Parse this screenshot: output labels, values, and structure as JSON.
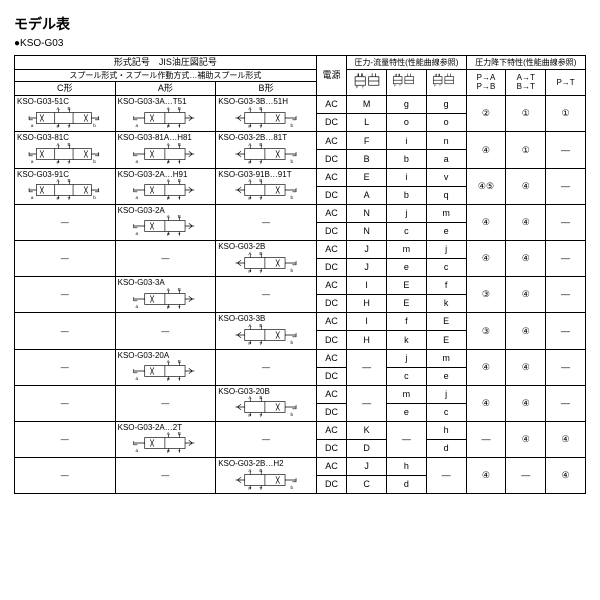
{
  "title": "モデル表",
  "subtitle": "●KSO-G03",
  "headers": {
    "model_sym": "形式記号　JIS油圧図記号",
    "spool_line": "スプール形式・スプール作動方式…補助スプール形式",
    "c_type": "C形",
    "a_type": "A形",
    "b_type": "B形",
    "power": "電源",
    "flow_title": "圧力-流量特性(性能曲線参照)",
    "pd_title": "圧力降下特性(性能曲線参照)",
    "flow_sub": [
      "A|B / P|T",
      "A|B / P|T",
      "A|B / P|T"
    ],
    "pd_pa": "P→A\nP→B",
    "pd_at": "A→T\nB→T",
    "pd_pt": "P→T"
  },
  "dash": "―",
  "groups": [
    {
      "c": "KSO-G03-51C",
      "a": "KSO-G03-3A…T51",
      "b": "KSO-G03-3B…51H",
      "rows": [
        {
          "pw": "AC",
          "f": [
            "M",
            "g",
            "g"
          ],
          "pa_span": true,
          "pa": "②",
          "at": "①",
          "pt": "①"
        },
        {
          "pw": "DC",
          "f": [
            "L",
            "o",
            "o"
          ]
        }
      ]
    },
    {
      "c": "KSO-G03-81C",
      "a": "KSO-G03-81A…H81",
      "b": "KSO-G03-2B…81T",
      "rows": [
        {
          "pw": "AC",
          "f": [
            "F",
            "i",
            "n"
          ],
          "pa_span": true,
          "pa": "④",
          "at": "①",
          "pt": "―"
        },
        {
          "pw": "DC",
          "f": [
            "B",
            "b",
            "a"
          ]
        }
      ]
    },
    {
      "c": "KSO-G03-91C",
      "a": "KSO-G03-2A…H91",
      "b": "KSO-G03-91B…91T",
      "rows": [
        {
          "pw": "AC",
          "f": [
            "E",
            "i",
            "v"
          ],
          "pa_span": true,
          "pa": "④⑤",
          "at": "④",
          "pt": "―"
        },
        {
          "pw": "DC",
          "f": [
            "A",
            "b",
            "q"
          ]
        }
      ]
    },
    {
      "c": null,
      "a": "KSO-G03-2A",
      "b": null,
      "rows": [
        {
          "pw": "AC",
          "f": [
            "N",
            "j",
            "m"
          ],
          "pa_span": true,
          "pa": "④",
          "at": "④",
          "pt": "―"
        },
        {
          "pw": "DC",
          "f": [
            "N",
            "c",
            "e"
          ]
        }
      ]
    },
    {
      "c": null,
      "a": null,
      "b": "KSO-G03-2B",
      "rows": [
        {
          "pw": "AC",
          "f": [
            "J",
            "m",
            "j"
          ],
          "pa_span": true,
          "pa": "④",
          "at": "④",
          "pt": "―"
        },
        {
          "pw": "DC",
          "f": [
            "J",
            "e",
            "c"
          ]
        }
      ]
    },
    {
      "c": null,
      "a": "KSO-G03-3A",
      "b": null,
      "rows": [
        {
          "pw": "AC",
          "f": [
            "I",
            "E",
            "f"
          ],
          "pa_span": true,
          "pa": "③",
          "at": "④",
          "pt": "―"
        },
        {
          "pw": "DC",
          "f": [
            "H",
            "E",
            "k"
          ]
        }
      ]
    },
    {
      "c": null,
      "a": null,
      "b": "KSO-G03-3B",
      "rows": [
        {
          "pw": "AC",
          "f": [
            "I",
            "f",
            "E"
          ],
          "pa_span": true,
          "pa": "③",
          "at": "④",
          "pt": "―"
        },
        {
          "pw": "DC",
          "f": [
            "H",
            "k",
            "E"
          ]
        }
      ]
    },
    {
      "c": null,
      "a": "KSO-G03-20A",
      "b": null,
      "rows": [
        {
          "pw": "AC",
          "f": [
            "―",
            "j",
            "m"
          ],
          "pa_span": true,
          "pa": "④",
          "at": "④",
          "pt": "―"
        },
        {
          "pw": "DC",
          "f": [
            "",
            "c",
            "e"
          ],
          "f0_merge_up": true
        }
      ]
    },
    {
      "c": null,
      "a": null,
      "b": "KSO-G03-20B",
      "rows": [
        {
          "pw": "AC",
          "f": [
            "―",
            "m",
            "j"
          ],
          "pa_span": true,
          "pa": "④",
          "at": "④",
          "pt": "―"
        },
        {
          "pw": "DC",
          "f": [
            "",
            "e",
            "c"
          ],
          "f0_merge_up": true
        }
      ]
    },
    {
      "c": null,
      "a": "KSO-G03-2A…2T",
      "b": null,
      "rows": [
        {
          "pw": "AC",
          "f": [
            "K",
            "",
            "h"
          ],
          "f1_span": true,
          "f1": "―",
          "pa_span": true,
          "pa": "―",
          "at": "④",
          "pt": "④",
          "at_circ": false
        },
        {
          "pw": "DC",
          "f": [
            "D",
            "",
            "d"
          ]
        }
      ]
    },
    {
      "c": null,
      "a": null,
      "b": "KSO-G03-2B…H2",
      "rows": [
        {
          "pw": "AC",
          "f": [
            "J",
            "h",
            ""
          ],
          "f2_span": true,
          "f2": "―",
          "pa_span": true,
          "pa": "④",
          "at": "―",
          "pt": "④",
          "pa_circ": true,
          "pt_circ": true
        },
        {
          "pw": "DC",
          "f": [
            "C",
            "d",
            ""
          ]
        }
      ]
    }
  ]
}
